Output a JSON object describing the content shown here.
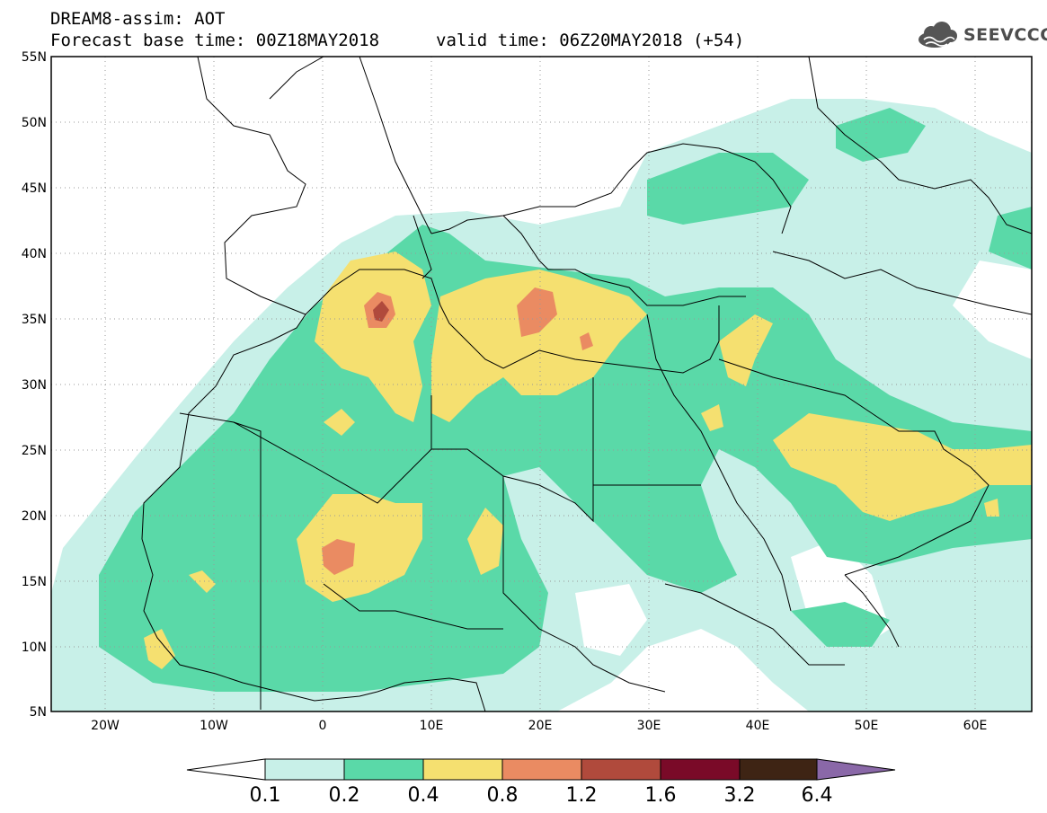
{
  "header": {
    "title": "DREAM8-assim: AOT",
    "base_time": "Forecast base time: 00Z18MAY2018",
    "valid_time": "valid time: 06Z20MAY2018 (+54)"
  },
  "logo": {
    "text": "SEEVCCC",
    "icon": "cloud-icon"
  },
  "map": {
    "lon_range": [
      -25,
      65
    ],
    "lat_range": [
      5,
      55
    ],
    "lat_labels": [
      "55N",
      "50N",
      "45N",
      "40N",
      "35N",
      "30N",
      "25N",
      "20N",
      "15N",
      "10N",
      "5N"
    ],
    "lon_labels": [
      "20W",
      "10W",
      "0",
      "10E",
      "20E",
      "30E",
      "40E",
      "50E",
      "60E"
    ],
    "grid": "dotted"
  },
  "colorbar": {
    "labels": [
      "0.1",
      "0.2",
      "0.4",
      "0.8",
      "1.2",
      "1.6",
      "3.2",
      "6.4"
    ],
    "colors": [
      "#ffffff",
      "#c8f0e8",
      "#5ad9a8",
      "#f5e070",
      "#ea8b62",
      "#b04a3c",
      "#7a0a28",
      "#3e2414",
      "#8a68a8"
    ]
  }
}
